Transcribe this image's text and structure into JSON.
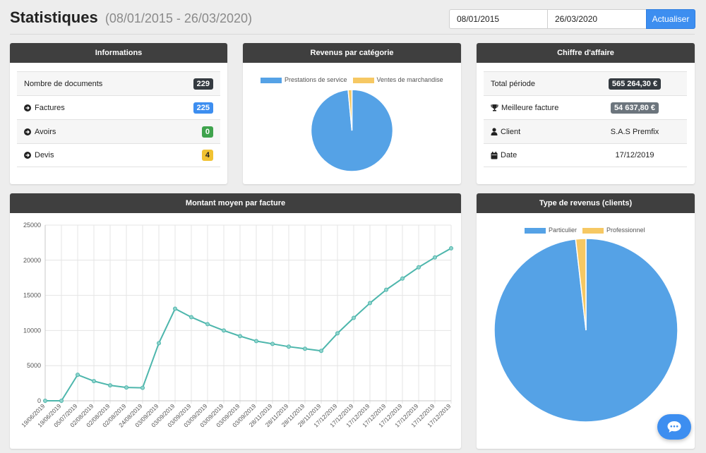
{
  "header": {
    "title": "Statistiques",
    "range": "(08/01/2015 - 26/03/2020)",
    "date_from": "08/01/2015",
    "date_to": "26/03/2020",
    "refresh_label": "Actualiser"
  },
  "informations": {
    "title": "Informations",
    "rows": [
      {
        "label": "Nombre de documents",
        "value": "229",
        "color": "#343a40"
      },
      {
        "label": "Factures",
        "value": "225",
        "color": "#3d8ef0"
      },
      {
        "label": "Avoirs",
        "value": "0",
        "color": "#3fa34d"
      },
      {
        "label": "Devis",
        "value": "4",
        "color": "#f1c232"
      }
    ]
  },
  "revenus_categorie": {
    "title": "Revenus par catégorie",
    "legend": [
      {
        "label": "Prestations de service",
        "color": "#55a2e6"
      },
      {
        "label": "Ventes de marchandise",
        "color": "#f6c863"
      }
    ]
  },
  "chiffre_affaire": {
    "title": "Chiffre d'affaire",
    "total_label": "Total période",
    "total_value": "565 264,30 €",
    "best_label": "Meilleure facture",
    "best_value": "54 637,80 €",
    "client_label": "Client",
    "client_value": "S.A.S Premfix",
    "date_label": "Date",
    "date_value": "17/12/2019"
  },
  "montant_moyen": {
    "title": "Montant moyen par facture"
  },
  "type_revenus": {
    "title": "Type de revenus (clients)",
    "legend": [
      {
        "label": "Particulier",
        "color": "#55a2e6"
      },
      {
        "label": "Professionnel",
        "color": "#f6c863"
      }
    ]
  },
  "icons": {
    "info_rows": "circle-arrow-right-icon",
    "best": "trophy-icon",
    "client": "user-icon",
    "date": "calendar-icon",
    "chat": "chat-bubble-icon"
  },
  "chart_data": [
    {
      "type": "pie",
      "labels": [
        "Prestations de service",
        "Ventes de marchandise"
      ],
      "values": [
        98.5,
        1.5
      ],
      "colors": [
        "#55a2e6",
        "#f6c863"
      ],
      "legend": "top"
    },
    {
      "type": "line",
      "categories": [
        "19/06/2019",
        "19/06/2019",
        "05/07/2019",
        "02/08/2019",
        "02/08/2019",
        "02/08/2019",
        "24/08/2019",
        "03/09/2019",
        "03/09/2019",
        "03/09/2019",
        "03/09/2019",
        "03/09/2019",
        "03/09/2019",
        "03/09/2019",
        "28/11/2019",
        "28/11/2019",
        "28/11/2019",
        "28/11/2019",
        "17/12/2019",
        "17/12/2019",
        "17/12/2019",
        "17/12/2019",
        "17/12/2019",
        "17/12/2019",
        "17/12/2019",
        "17/12/2019"
      ],
      "values": [
        0,
        0,
        3700,
        2800,
        2200,
        1900,
        1850,
        8200,
        13100,
        11900,
        10900,
        10000,
        9200,
        8500,
        8100,
        7700,
        7400,
        7100,
        9600,
        11800,
        13900,
        15800,
        17400,
        19000,
        20400,
        21700
      ],
      "ylim": [
        0,
        25000
      ],
      "yticks": [
        0,
        5000,
        10000,
        15000,
        20000,
        25000
      ],
      "color": "#4db6ac",
      "grid": true
    },
    {
      "type": "pie",
      "labels": [
        "Particulier",
        "Professionnel"
      ],
      "values": [
        98.2,
        1.8
      ],
      "colors": [
        "#55a2e6",
        "#f6c863"
      ],
      "legend": "top"
    }
  ]
}
